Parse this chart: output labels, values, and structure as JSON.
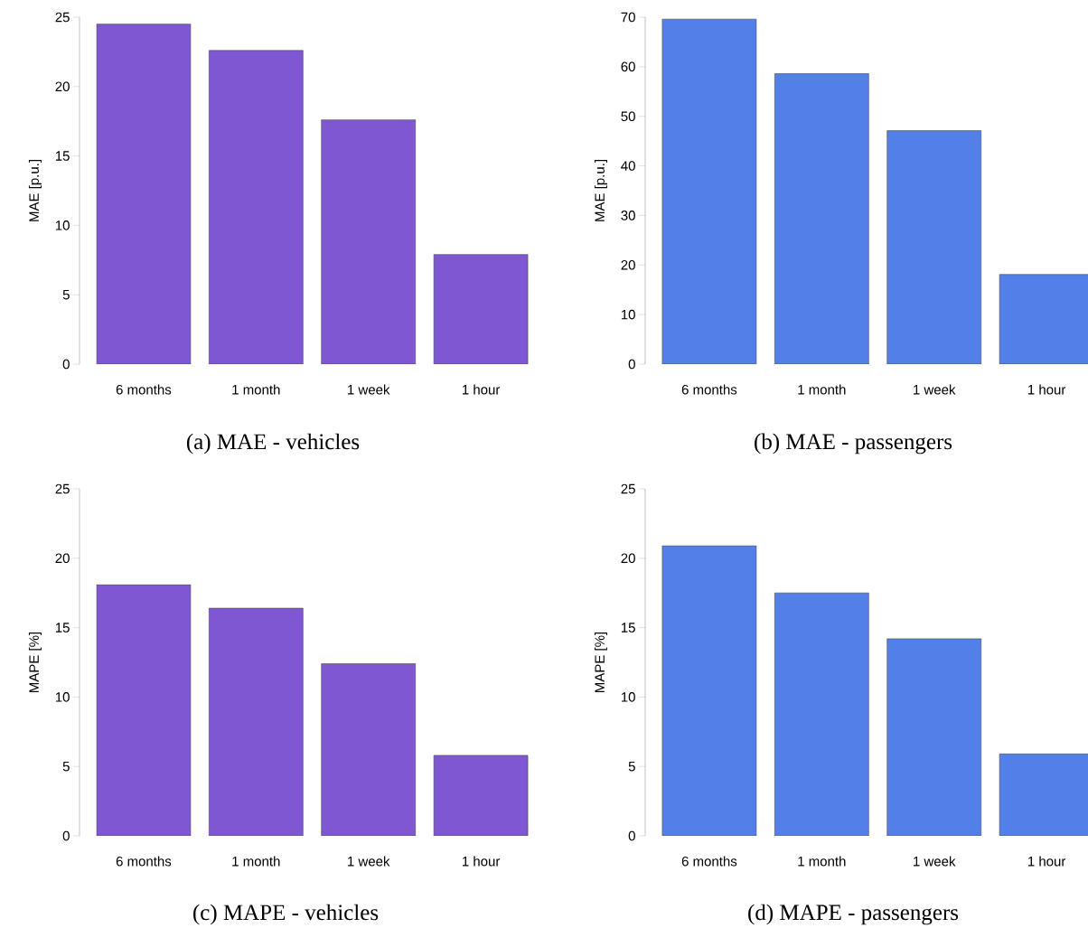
{
  "chart_data": [
    {
      "type": "bar",
      "title": "(a) MAE - vehicles",
      "ylabel": "MAE [p.u.]",
      "categories": [
        "6 months",
        "1 month",
        "1 week",
        "1 hour"
      ],
      "values": [
        24.5,
        22.6,
        17.6,
        7.9
      ],
      "color": "#7f57d3",
      "ylim": [
        0,
        25
      ],
      "yticks": [
        0,
        5,
        10,
        15,
        20,
        25
      ]
    },
    {
      "type": "bar",
      "title": "(b) MAE - passengers",
      "ylabel": "MAE [p.u.]",
      "categories": [
        "6 months",
        "1 month",
        "1 week",
        "1 hour"
      ],
      "values": [
        69.6,
        58.6,
        47.1,
        18.1
      ],
      "color": "#527fe8",
      "ylim": [
        0,
        70
      ],
      "yticks": [
        0,
        10,
        20,
        30,
        40,
        50,
        60,
        70
      ]
    },
    {
      "type": "bar",
      "title": "(c) MAPE - vehicles",
      "ylabel": "MAPE [%]",
      "categories": [
        "6 months",
        "1 month",
        "1 week",
        "1 hour"
      ],
      "values": [
        18.1,
        16.4,
        12.4,
        5.8
      ],
      "color": "#7f57d3",
      "ylim": [
        0,
        25
      ],
      "yticks": [
        0,
        5,
        10,
        15,
        20,
        25
      ]
    },
    {
      "type": "bar",
      "title": "(d) MAPE - passengers",
      "ylabel": "MAPE [%]",
      "categories": [
        "6 months",
        "1 month",
        "1 week",
        "1 hour"
      ],
      "values": [
        20.9,
        17.5,
        14.2,
        5.9
      ],
      "color": "#527fe8",
      "ylim": [
        0,
        25
      ],
      "yticks": [
        0,
        5,
        10,
        15,
        20,
        25
      ]
    }
  ]
}
